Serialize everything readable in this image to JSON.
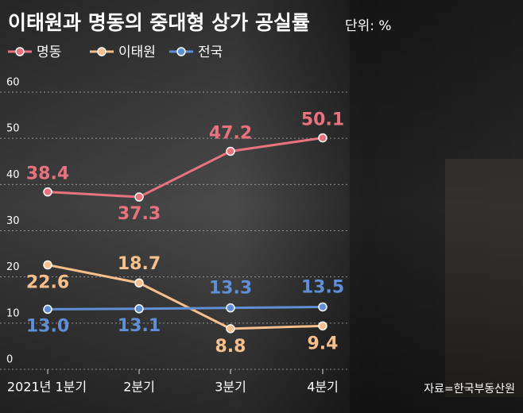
{
  "chart_data": {
    "type": "line",
    "title": "이태원과 명동의 중대형 상가 공실률",
    "subtitle": "단위: %",
    "source": "자료=한국부동산원",
    "categories": [
      "2021년 1분기",
      "2분기",
      "3분기",
      "4분기"
    ],
    "series": [
      {
        "name": "명동",
        "color": "#e8737f",
        "values": [
          38.4,
          37.3,
          47.2,
          50.1
        ]
      },
      {
        "name": "이태원",
        "color": "#f7bf8c",
        "values": [
          22.6,
          18.7,
          8.8,
          9.4
        ]
      },
      {
        "name": "전국",
        "color": "#5f8fd6",
        "values": [
          13.0,
          13.1,
          13.3,
          13.5
        ],
        "value_labels": [
          "13.0",
          "13.1",
          "13.3",
          "13.5"
        ]
      }
    ],
    "ylim": [
      0,
      60
    ],
    "yticks": [
      0,
      10,
      20,
      30,
      40,
      50,
      60
    ],
    "grid": true
  }
}
